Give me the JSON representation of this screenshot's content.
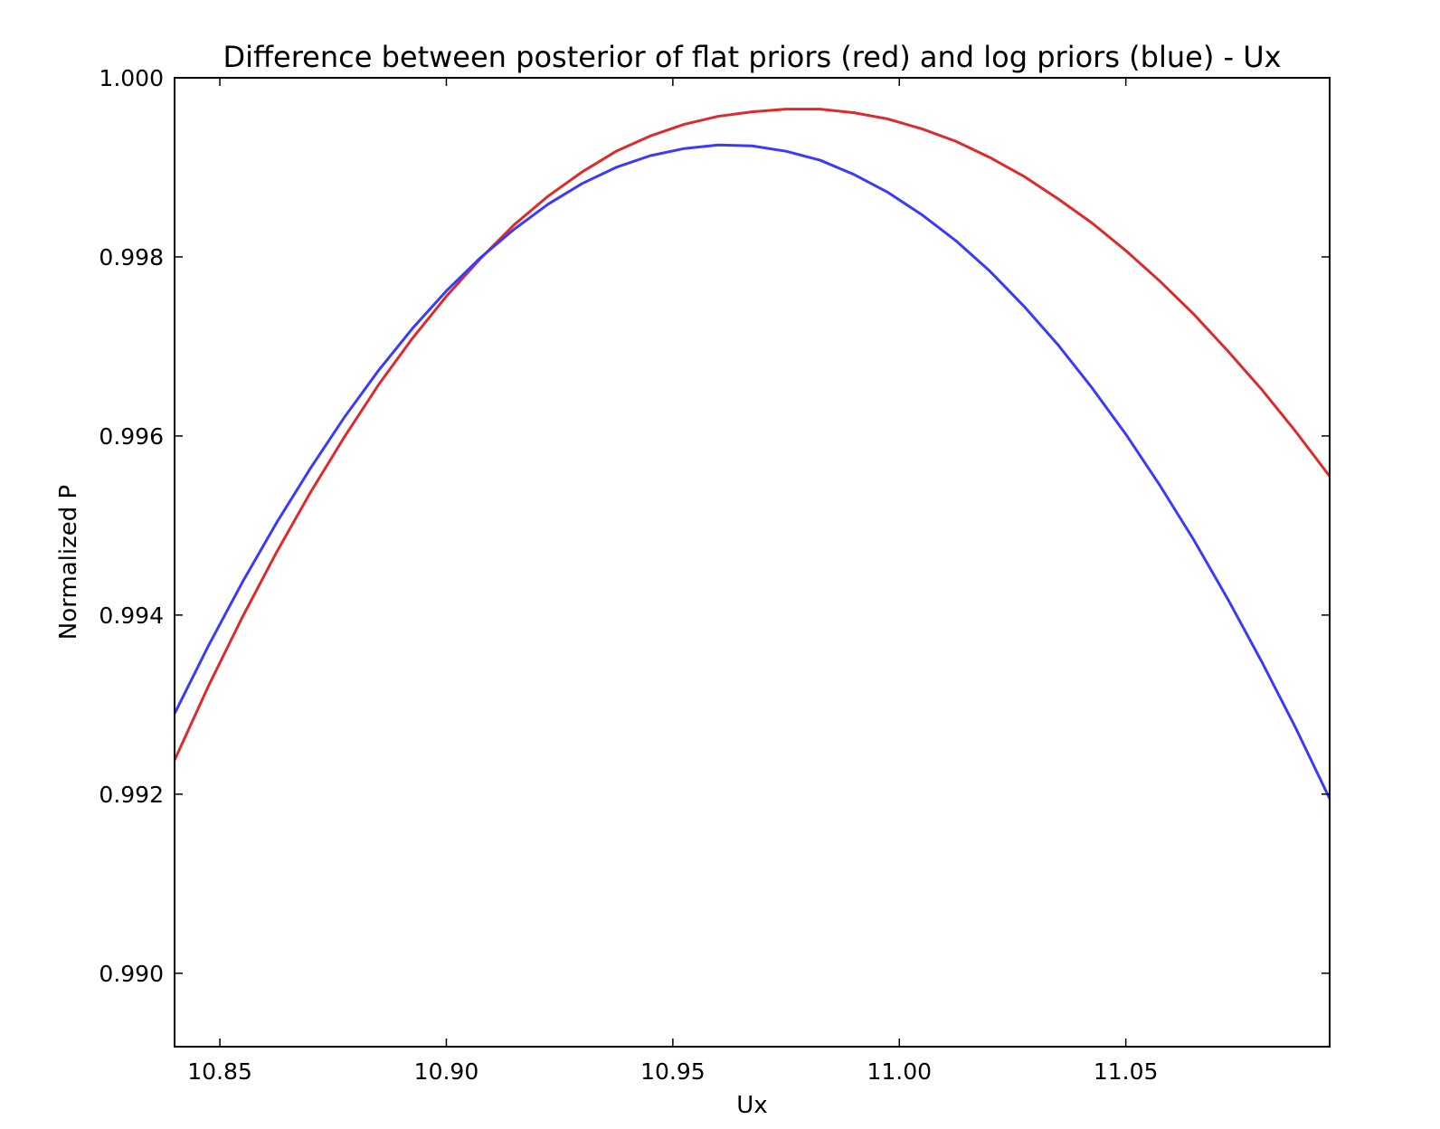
{
  "chart_data": {
    "type": "line",
    "title": "Difference between posterior of flat priors (red) and log priors (blue) - Ux",
    "xlabel": "Ux",
    "ylabel": "Normalized P",
    "xlim": [
      10.84,
      11.095
    ],
    "ylim": [
      0.98918,
      1.0
    ],
    "xticks": [
      10.85,
      10.9,
      10.95,
      11.0,
      11.05
    ],
    "xtick_labels": [
      "10.85",
      "10.90",
      "10.95",
      "11.00",
      "11.05"
    ],
    "yticks": [
      0.99,
      0.992,
      0.994,
      0.996,
      0.998,
      1.0
    ],
    "ytick_labels": [
      "0.990",
      "0.992",
      "0.994",
      "0.996",
      "0.998",
      "1.000"
    ],
    "grid": false,
    "legend": "none",
    "series": [
      {
        "color": "#dd2a2a",
        "x": [
          10.84,
          10.8475,
          10.855,
          10.8625,
          10.87,
          10.8775,
          10.885,
          10.8925,
          10.9,
          10.9075,
          10.915,
          10.9225,
          10.93,
          10.9375,
          10.945,
          10.9525,
          10.96,
          10.9675,
          10.975,
          10.9825,
          10.99,
          10.9975,
          11.005,
          11.0125,
          11.02,
          11.0275,
          11.035,
          11.0425,
          11.05,
          11.0575,
          11.065,
          11.0725,
          11.08,
          11.0875,
          11.095
        ],
        "y": [
          0.99238,
          0.99321,
          0.99398,
          0.9947,
          0.99537,
          0.99599,
          0.99657,
          0.99709,
          0.99756,
          0.99798,
          0.99836,
          0.99868,
          0.99895,
          0.99918,
          0.99935,
          0.99948,
          0.99957,
          0.99962,
          0.99965,
          0.99965,
          0.99961,
          0.99954,
          0.99943,
          0.99929,
          0.99911,
          0.9989,
          0.99865,
          0.99838,
          0.99807,
          0.99773,
          0.99736,
          0.99695,
          0.99652,
          0.99605,
          0.99555
        ]
      },
      {
        "color": "#3a3aff",
        "x": [
          10.84,
          10.8475,
          10.855,
          10.8625,
          10.87,
          10.8775,
          10.885,
          10.8925,
          10.9,
          10.9075,
          10.915,
          10.9225,
          10.93,
          10.9375,
          10.945,
          10.9525,
          10.96,
          10.9675,
          10.975,
          10.9825,
          10.99,
          10.9975,
          11.005,
          11.0125,
          11.02,
          11.0275,
          11.035,
          11.0425,
          11.05,
          11.0575,
          11.065,
          11.0725,
          11.08,
          11.0875,
          11.095
        ],
        "y": [
          0.9929,
          0.99366,
          0.99437,
          0.99503,
          0.99564,
          0.99621,
          0.99673,
          0.9972,
          0.99762,
          0.99799,
          0.99831,
          0.99859,
          0.99882,
          0.999,
          0.99913,
          0.99921,
          0.99925,
          0.99924,
          0.99918,
          0.99908,
          0.99892,
          0.99872,
          0.99847,
          0.99818,
          0.99784,
          0.99745,
          0.99702,
          0.99654,
          0.99602,
          0.99545,
          0.99484,
          0.99418,
          0.99348,
          0.99274,
          0.99195
        ]
      }
    ]
  }
}
